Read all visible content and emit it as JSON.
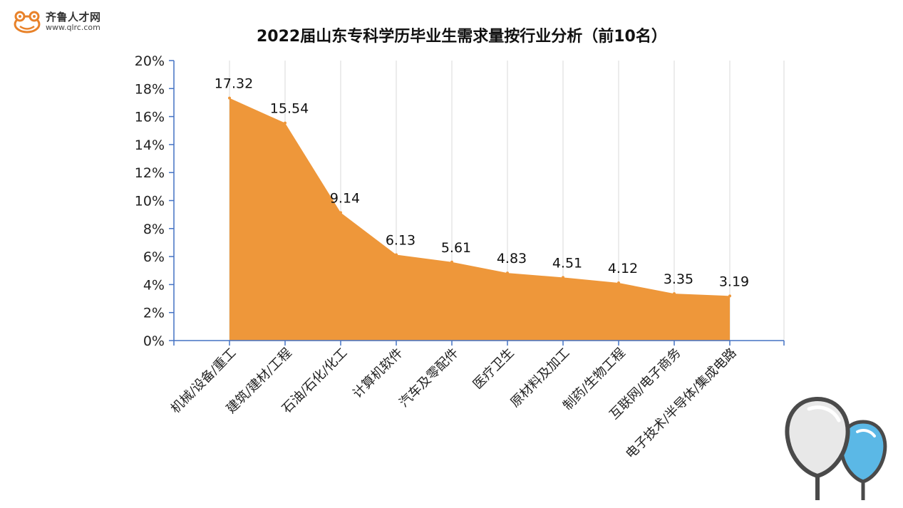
{
  "logo": {
    "name": "齐鲁人才网",
    "url": "www.qlrc.com",
    "icon": "frog-logo-icon"
  },
  "decoration": {
    "icon": "balloons-icon"
  },
  "colors": {
    "area_fill": "#EE973A",
    "axis": "#4472C4",
    "grid": "#D9D9D9",
    "balloon_outline": "#4A4A4A",
    "balloon_blue": "#5BB8E6",
    "balloon_white": "#E8E8E8",
    "logo_orange": "#E8822A"
  },
  "chart_data": {
    "type": "area",
    "title": "2022届山东专科学历毕业生需求量按行业分析（前10名）",
    "xlabel": "",
    "ylabel": "",
    "categories": [
      "机械/设备/重工",
      "建筑/建材/工程",
      "石油/石化/化工",
      "计算机软件",
      "汽车及零配件",
      "医疗卫生",
      "原材料及加工",
      "制药/生物工程",
      "互联网/电子商务",
      "电子技术/半导体/集成电路"
    ],
    "values": [
      17.32,
      15.54,
      9.14,
      6.13,
      5.61,
      4.83,
      4.51,
      4.12,
      3.35,
      3.19
    ],
    "data_labels": [
      "17.32",
      "15.54",
      "9.14",
      "6.13",
      "5.61",
      "4.83",
      "4.51",
      "4.12",
      "3.35",
      "3.19"
    ],
    "ylim": [
      0,
      20
    ],
    "yticks": [
      0,
      2,
      4,
      6,
      8,
      10,
      12,
      14,
      16,
      18,
      20
    ],
    "ytick_labels": [
      "0%",
      "2%",
      "4%",
      "6%",
      "8%",
      "10%",
      "12%",
      "14%",
      "16%",
      "18%",
      "20%"
    ],
    "grid": "vertical",
    "legend": "none"
  }
}
